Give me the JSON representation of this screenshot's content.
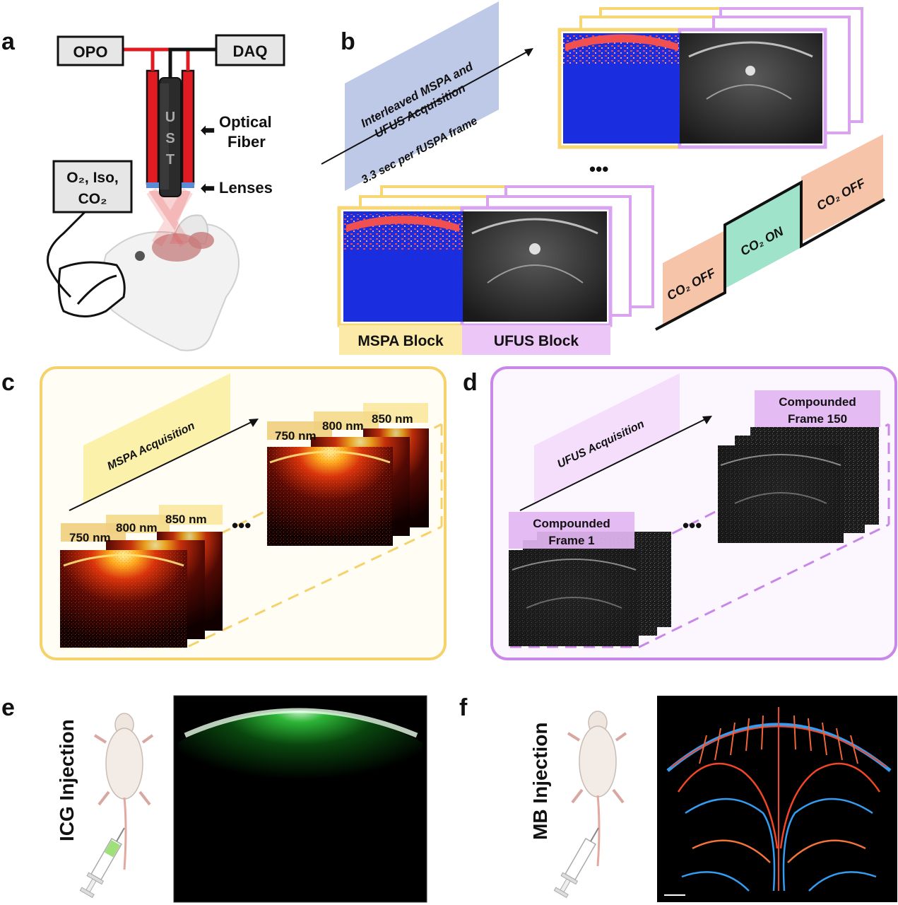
{
  "panel_labels": {
    "a": "a",
    "b": "b",
    "c": "c",
    "d": "d",
    "e": "e",
    "f": "f"
  },
  "panel_a": {
    "opo": "OPO",
    "daq": "DAQ",
    "ust": [
      "U",
      "S",
      "T"
    ],
    "optical_fiber": [
      "Optical",
      "Fiber"
    ],
    "lenses": "Lenses",
    "gas_line1": "O₂, Iso,",
    "gas_line2": "CO₂",
    "colors": {
      "fiber": "#e01b22",
      "cable": "#111111",
      "box": "#e6e6e6"
    }
  },
  "panel_b": {
    "banner_line1": "Interleaved MSPA and",
    "banner_line2": "UFUS Acquisition",
    "banner_line3": "3.3 sec per fUSPA frame",
    "mspa_block": "MSPA Block",
    "ufus_block": "UFUS Block",
    "co2_off_1": "CO₂ OFF",
    "co2_on": "CO₂ ON",
    "co2_off_2": "CO₂ OFF",
    "ellipsis": "•••",
    "colors": {
      "mspa": "#f7d774",
      "ufus": "#d9a3f0",
      "banner": "#b7c3e6",
      "off": "#f6c4a9",
      "on": "#9fe3cb",
      "pa_bg": "#1a2ee0"
    }
  },
  "panel_c": {
    "title": "MSPA Acquisition",
    "wl_750": "750 nm",
    "wl_800": "800 nm",
    "wl_850": "850 nm",
    "ellipsis": "•••",
    "colors": {
      "frame": "#f5d26b",
      "bg": "#fffdf4"
    }
  },
  "panel_d": {
    "title": "UFUS Acquisition",
    "first_frame_line1": "Compounded",
    "first_frame_line2": "Frame 1",
    "last_frame_line1": "Compounded",
    "last_frame_line2": "Frame 150",
    "ellipsis": "•••",
    "colors": {
      "frame": "#c987e8",
      "bg": "#fcf7ff"
    }
  },
  "panel_e": {
    "label": "ICG Injection",
    "colors": {
      "signal": "#22c030"
    }
  },
  "panel_f": {
    "label": "MB Injection",
    "colors": {
      "vessel_a": "#ff4a2a",
      "vessel_b": "#37a6ff"
    }
  }
}
